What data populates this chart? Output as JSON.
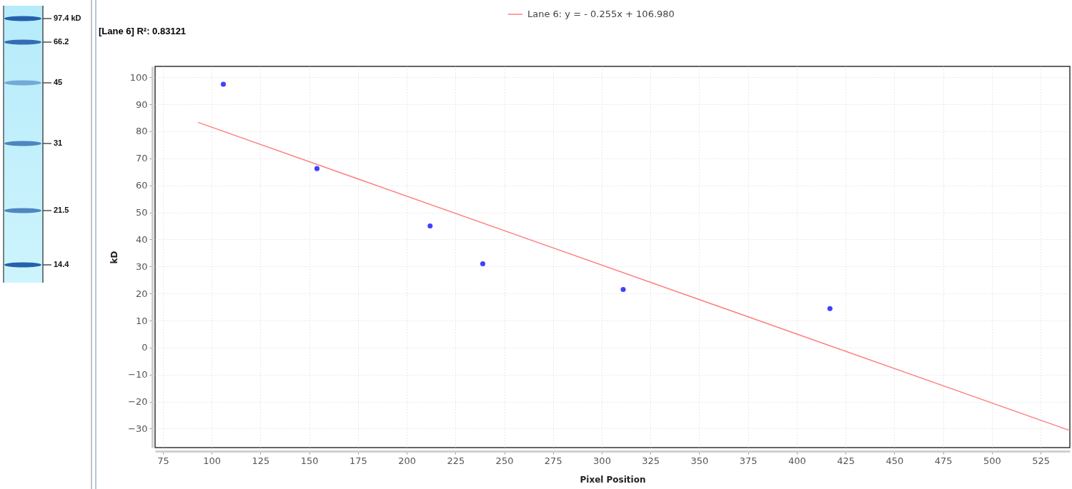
{
  "chart_data": {
    "type": "scatter",
    "title": "[Lane 6] R²: 0.83121",
    "xlabel": "Pixel Position",
    "ylabel": "kD",
    "annotations": [
      "97.4 kD",
      "66.2",
      "45",
      "31",
      "21.5",
      "14.4"
    ],
    "series": [
      {
        "color": "#4040ff",
        "marker": "circle",
        "x": [
          106,
          154,
          212,
          239,
          311,
          417
        ],
        "values": [
          97.4,
          66.2,
          45,
          31,
          21.5,
          14.4
        ]
      },
      {
        "type": "line",
        "name": "Lane 6: y =  - 0.255x + 106.980",
        "color": "#ff8080",
        "x": [
          93,
          540
        ],
        "values": [
          83.3,
          -30.7
        ]
      }
    ],
    "xlim": [
      71,
      540
    ],
    "ylim": [
      -37,
      104
    ],
    "xticks": [
      75,
      100,
      125,
      150,
      175,
      200,
      225,
      250,
      275,
      300,
      325,
      350,
      375,
      400,
      425,
      450,
      475,
      500,
      525
    ],
    "yticks": [
      -30,
      -20,
      -10,
      0,
      10,
      20,
      30,
      40,
      50,
      60,
      70,
      80,
      90,
      100
    ],
    "grid": true,
    "legend": "top"
  }
}
